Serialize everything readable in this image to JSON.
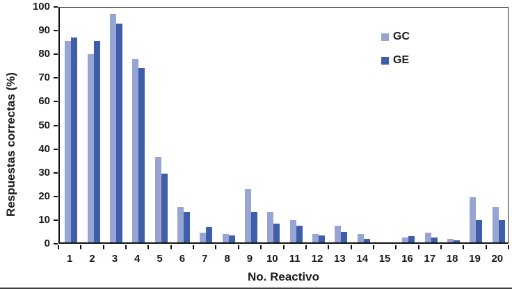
{
  "chart_data": {
    "type": "bar",
    "title": "",
    "xlabel": "No. Reactivo",
    "ylabel": "Respuestas correctas (%)",
    "ylim": [
      0,
      100
    ],
    "y_ticks": [
      0,
      10,
      20,
      30,
      40,
      50,
      60,
      70,
      80,
      90,
      100
    ],
    "grid": false,
    "legend_position": "top-right-inside",
    "categories": [
      "1",
      "2",
      "3",
      "4",
      "5",
      "6",
      "7",
      "8",
      "9",
      "10",
      "11",
      "12",
      "13",
      "14",
      "15",
      "16",
      "17",
      "18",
      "19",
      "20"
    ],
    "series": [
      {
        "name": "GC",
        "color": "#96A5D3",
        "values": [
          85,
          79.5,
          96.5,
          77.5,
          36,
          15,
          4,
          3.5,
          22.5,
          13,
          9.5,
          3.5,
          7,
          3.5,
          0,
          2,
          4,
          1.5,
          19,
          15
        ]
      },
      {
        "name": "GE",
        "color": "#3F5EA9",
        "values": [
          86.5,
          85,
          92.5,
          73.5,
          29,
          13,
          6.5,
          3,
          13,
          8,
          7,
          3,
          4.5,
          1.5,
          0,
          2.5,
          2,
          1,
          9.5,
          9.5
        ]
      }
    ]
  },
  "colors": {
    "axis": "#111111",
    "text": "#1a1a1a",
    "bottom_rule": "#3c4148",
    "background": "#ffffff"
  }
}
